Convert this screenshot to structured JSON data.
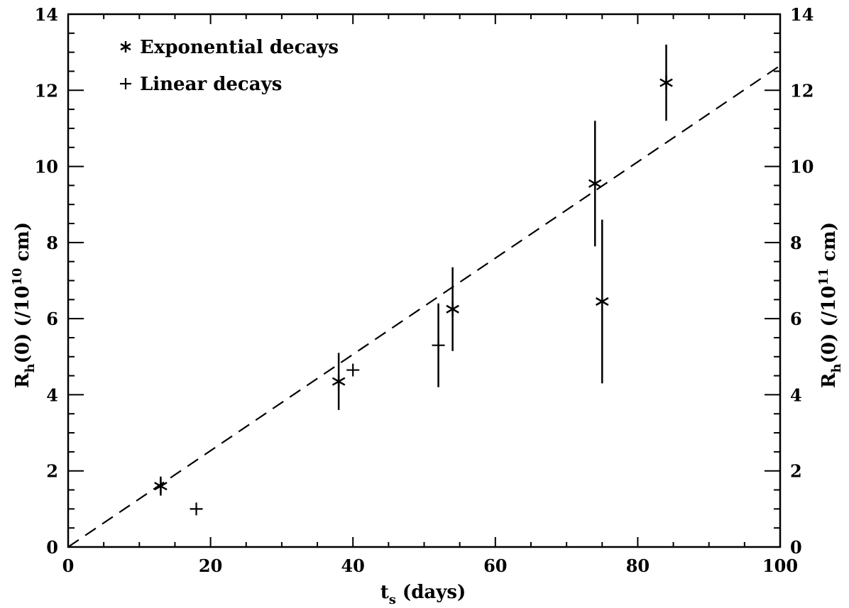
{
  "chart_data": {
    "type": "scatter",
    "xlabel": {
      "main": "t",
      "sub": "s",
      "rest": " (days)"
    },
    "ylabel_left": {
      "main": "R",
      "sub": "h",
      "mid": "(0)  (/10",
      "sup": "10",
      "rest": " cm)"
    },
    "ylabel_right": {
      "main": "R",
      "sub": "h",
      "mid": "(0)  (/10",
      "sup": "11",
      "rest": " cm)"
    },
    "xlim": [
      0,
      100
    ],
    "ylim": [
      0,
      14
    ],
    "x_ticks": [
      "0",
      "20",
      "40",
      "60",
      "80",
      "100"
    ],
    "y_ticks": [
      "0",
      "2",
      "4",
      "6",
      "8",
      "10",
      "12",
      "14"
    ],
    "grid": false,
    "legend_position": "top-left",
    "series": [
      {
        "name": "Exponential decays",
        "marker": "asterisk",
        "points": [
          {
            "x": 13,
            "y": 1.6,
            "err_low": 0.25,
            "err_high": 0.25
          },
          {
            "x": 38,
            "y": 4.35,
            "err_low": 0.75,
            "err_high": 0.75
          },
          {
            "x": 54,
            "y": 6.25,
            "err_low": 1.1,
            "err_high": 1.1
          },
          {
            "x": 74,
            "y": 9.55,
            "err_low": 1.65,
            "err_high": 1.65
          },
          {
            "x": 75,
            "y": 6.45,
            "err_low": 2.15,
            "err_high": 2.15
          },
          {
            "x": 84,
            "y": 12.2,
            "err_low": 1.0,
            "err_high": 1.0
          }
        ]
      },
      {
        "name": "Linear decays",
        "marker": "plus",
        "points": [
          {
            "x": 18,
            "y": 1.0,
            "err_low": 0,
            "err_high": 0
          },
          {
            "x": 40,
            "y": 4.65,
            "err_low": 0,
            "err_high": 0
          },
          {
            "x": 52,
            "y": 5.3,
            "err_low": 1.1,
            "err_high": 1.1
          }
        ]
      }
    ],
    "fit_line": {
      "style": "dashed",
      "x": [
        0,
        100
      ],
      "y": [
        0,
        12.65
      ]
    }
  }
}
